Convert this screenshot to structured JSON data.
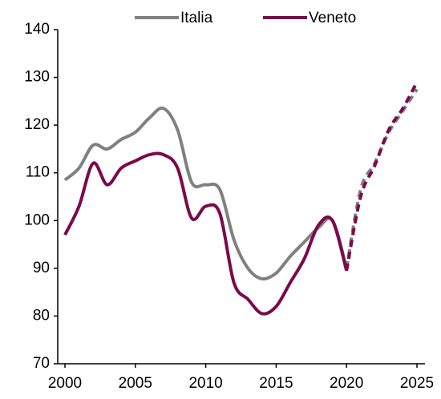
{
  "chart_data": {
    "type": "line",
    "x": [
      2000,
      2001,
      2002,
      2003,
      2004,
      2005,
      2006,
      2007,
      2008,
      2009,
      2010,
      2011,
      2012,
      2013,
      2014,
      2015,
      2016,
      2017,
      2018,
      2019,
      2020,
      2021,
      2022,
      2023,
      2024,
      2025
    ],
    "series": [
      {
        "name": "Italia",
        "color": "#808080",
        "values": [
          108.5,
          111,
          115.8,
          115,
          117,
          118.5,
          121.5,
          123.5,
          119,
          108,
          107.5,
          106.5,
          96,
          90,
          87.8,
          89,
          92.5,
          95.5,
          98.5,
          100,
          90,
          106.5,
          112,
          118.5,
          123,
          127.5
        ]
      },
      {
        "name": "Veneto",
        "color": "#7b0a4b",
        "values": [
          97,
          103,
          112,
          107.5,
          111,
          112.5,
          113.8,
          113.8,
          111,
          100.5,
          103,
          101.5,
          87,
          83.5,
          80.5,
          82,
          87,
          92,
          99,
          100,
          89.5,
          105,
          111.5,
          119,
          123.5,
          129
        ]
      }
    ],
    "dashed_from_x": 2020,
    "xlim": [
      2000,
      2025
    ],
    "xticks": [
      2000,
      2005,
      2010,
      2015,
      2020,
      2025
    ],
    "ylim": [
      70,
      140
    ],
    "yticks": [
      70,
      80,
      90,
      100,
      110,
      120,
      130,
      140
    ],
    "legend": "top",
    "grid": false
  }
}
